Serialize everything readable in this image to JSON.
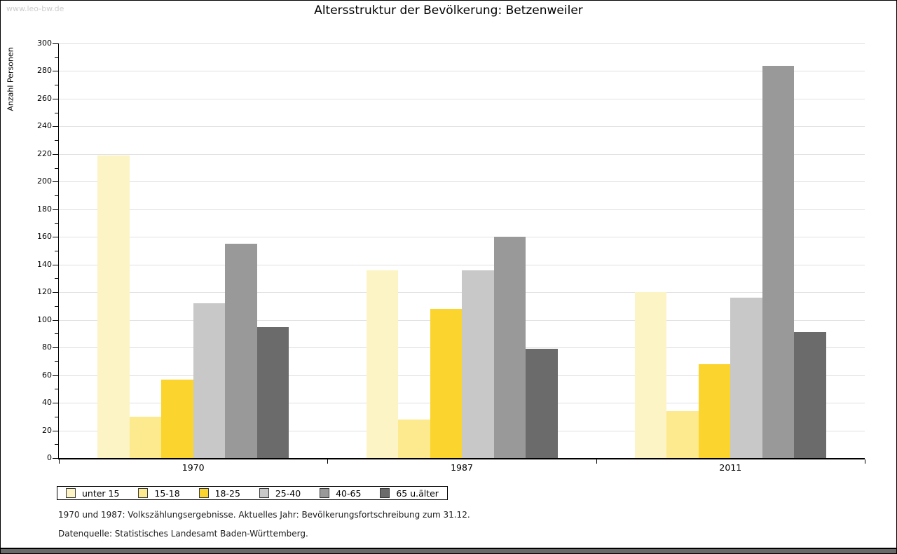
{
  "watermark": "www.leo-bw.de",
  "chart_data": {
    "type": "bar",
    "title": "Altersstruktur der Bevölkerung: Betzenweiler",
    "xlabel": "",
    "ylabel": "Anzahl Personen",
    "categories": [
      "1970",
      "1987",
      "2011"
    ],
    "series": [
      {
        "name": "unter 15",
        "color": "#FCF4C5",
        "values": [
          219,
          136,
          120
        ]
      },
      {
        "name": "15-18",
        "color": "#FDE98E",
        "values": [
          30,
          28,
          34
        ]
      },
      {
        "name": "18-25",
        "color": "#FBD42E",
        "values": [
          57,
          108,
          68
        ]
      },
      {
        "name": "25-40",
        "color": "#C8C8C8",
        "values": [
          112,
          136,
          116
        ]
      },
      {
        "name": "40-65",
        "color": "#999999",
        "values": [
          155,
          160,
          284
        ]
      },
      {
        "name": "65 u.älter",
        "color": "#6B6B6B",
        "values": [
          95,
          79,
          91
        ]
      }
    ],
    "ylim": [
      0,
      300
    ],
    "ytick_step": 20,
    "minor_tick_step": 10,
    "grid": true,
    "legend_position": "bottom-left"
  },
  "footnotes": {
    "line1": "1970 und 1987: Volkszählungsergebnisse. Aktuelles Jahr: Bevölkerungsfortschreibung zum 31.12.",
    "line2": "Datenquelle: Statistisches Landesamt Baden-Württemberg."
  },
  "colors": {
    "gridline": "#E0E0E0",
    "axis": "#000000",
    "watermark": "#CCCCCC",
    "footer_bar": "#696969"
  }
}
